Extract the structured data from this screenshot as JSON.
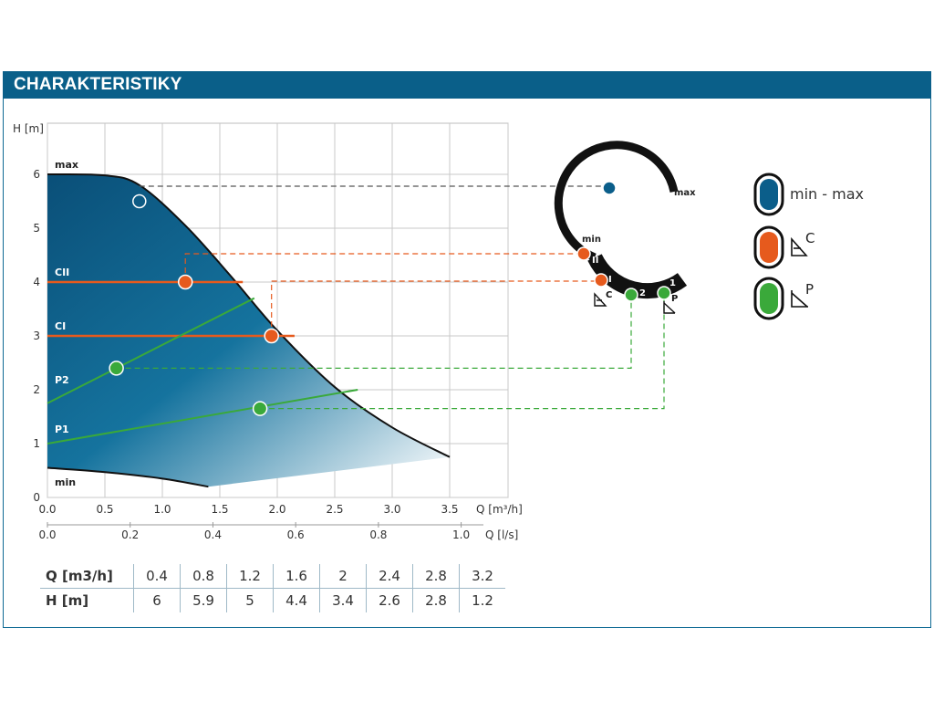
{
  "header": {
    "title": "CHARAKTERISTIKY"
  },
  "chart_data": {
    "type": "area",
    "ylabel": "H [m]",
    "xlabel_top": "Q [m³/h]",
    "xlabel_bottom": "Q [l/s]",
    "xlim": [
      0,
      4
    ],
    "ylim": [
      0,
      7
    ],
    "x_ticks": [
      "0.0",
      "0.5",
      "1.0",
      "1.5",
      "2.0",
      "2.5",
      "3.0",
      "3.5"
    ],
    "x_ticks_ls": [
      "0.0",
      "0.2",
      "0.4",
      "0.6",
      "0.8",
      "1.0"
    ],
    "y_ticks": [
      "0",
      "1",
      "2",
      "3",
      "4",
      "5",
      "6"
    ],
    "grid": true,
    "series": [
      {
        "name": "max",
        "x": [
          0,
          0.5,
          0.8,
          1.2,
          1.6,
          2.0,
          2.5,
          3.0,
          3.5
        ],
        "y": [
          6.0,
          5.98,
          5.8,
          5.05,
          4.1,
          3.1,
          2.05,
          1.3,
          0.75
        ]
      },
      {
        "name": "min",
        "x": [
          0,
          0.5,
          1.0,
          1.4
        ],
        "y": [
          0.55,
          0.47,
          0.35,
          0.2
        ]
      },
      {
        "name": "CII",
        "x": [
          0,
          1.7
        ],
        "y": [
          4.0,
          4.0
        ]
      },
      {
        "name": "CI",
        "x": [
          0,
          2.15
        ],
        "y": [
          3.0,
          3.0
        ]
      },
      {
        "name": "P2",
        "x": [
          0,
          1.8
        ],
        "y": [
          1.75,
          3.7
        ]
      },
      {
        "name": "P1",
        "x": [
          0,
          2.7
        ],
        "y": [
          1.0,
          2.0
        ]
      }
    ],
    "markers": [
      {
        "label": "max-point",
        "x": 0.8,
        "y": 5.5
      },
      {
        "label": "CII",
        "x": 1.2,
        "y": 4.0
      },
      {
        "label": "CI",
        "x": 1.95,
        "y": 3.0
      },
      {
        "label": "P2",
        "x": 0.6,
        "y": 2.4
      },
      {
        "label": "P1",
        "x": 1.85,
        "y": 1.65
      }
    ],
    "table": {
      "rows": [
        {
          "header": "Q [m3/h]",
          "values": [
            "0.4",
            "0.8",
            "1.2",
            "1.6",
            "2",
            "2.4",
            "2.8",
            "3.2"
          ]
        },
        {
          "header": "H [m]",
          "values": [
            "6",
            "5.9",
            "5",
            "4.4",
            "3.4",
            "2.6",
            "2.8",
            "1.2"
          ]
        }
      ]
    }
  },
  "dial": {
    "max_label": "max",
    "min_label": "min",
    "seg_ii": "II",
    "seg_i": "I",
    "seg_2": "2",
    "seg_1": "1",
    "c_label": "C",
    "p_label": "P"
  },
  "legend": [
    {
      "label": "min - max",
      "color": "#0b5e8a"
    },
    {
      "label": "C",
      "color": "#e85a1c"
    },
    {
      "label": "P",
      "color": "#3cae3c"
    }
  ],
  "colors": {
    "blue": "#0a5f89",
    "orange": "#e65a1d",
    "green": "#3aa93a"
  }
}
